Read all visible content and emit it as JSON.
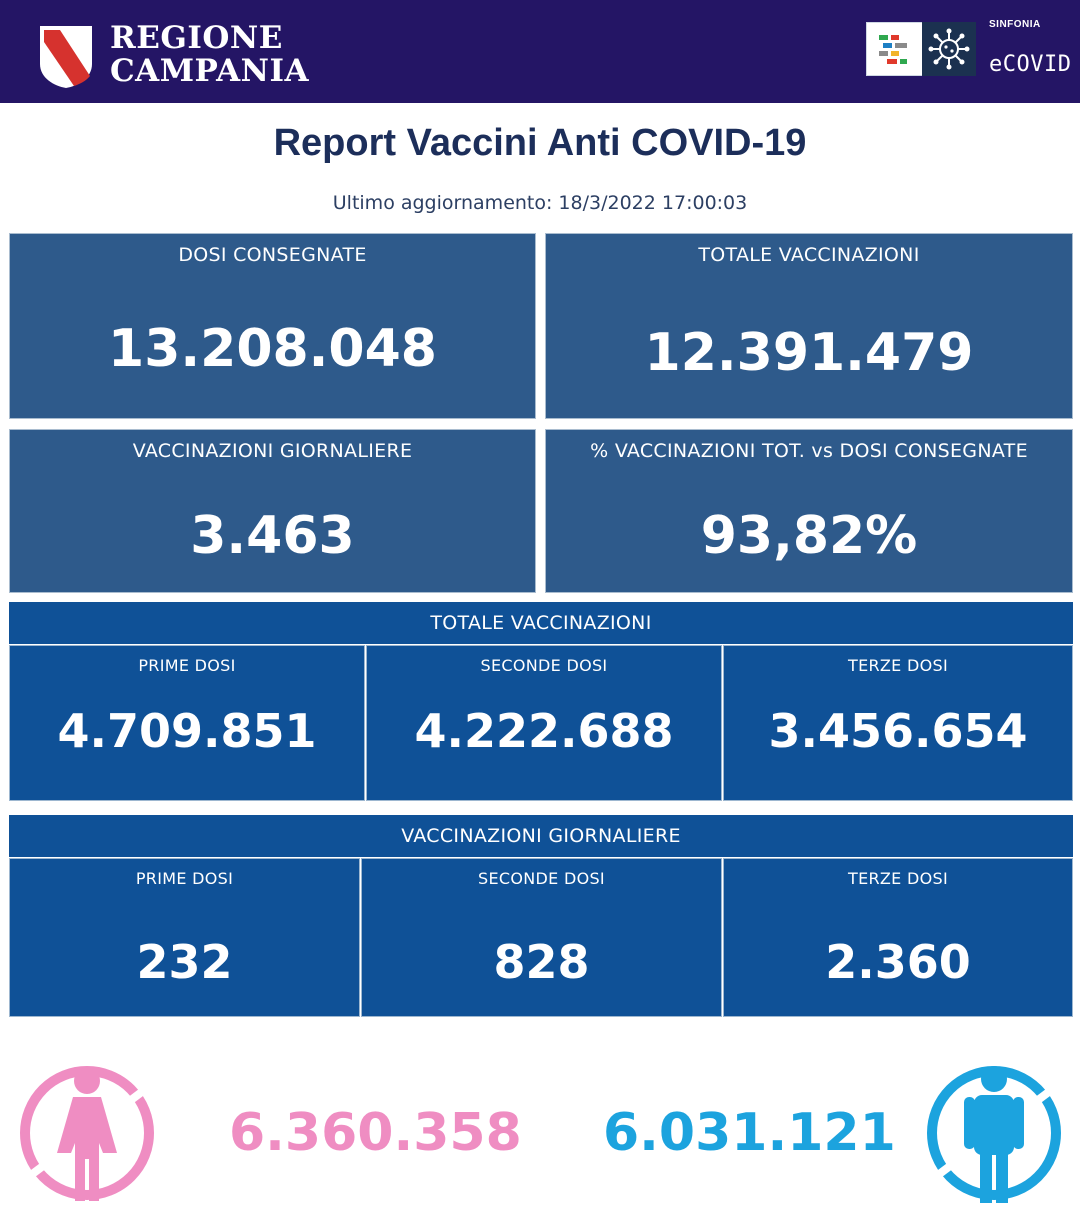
{
  "header": {
    "brand_line1": "REGIONE",
    "brand_line2": "CAMPANIA",
    "partner_small": "SINFONIA",
    "partner_name": "eCOVID",
    "icons": [
      "campania-crest-icon",
      "sinfonia-logo-icon",
      "virus-icon"
    ]
  },
  "title": "Report Vaccini Anti COVID-19",
  "updated": "Ultimo aggiornamento: 18/3/2022  17:00:03",
  "summary": {
    "dosi_consegnate": {
      "label": "DOSI  CONSEGNATE",
      "value": "13.208.048"
    },
    "totale_vaccinazioni": {
      "label": "TOTALE VACCINAZIONI",
      "value": "12.391.479"
    },
    "vaccinazioni_giornaliere": {
      "label": "VACCINAZIONI GIORNALIERE",
      "value": "3.463"
    },
    "percentuale": {
      "label": "% VACCINAZIONI TOT. vs DOSI CONSEGNATE",
      "value": "93,82%"
    }
  },
  "totale": {
    "heading": "TOTALE VACCINAZIONI",
    "cells": [
      {
        "label": "PRIME DOSI",
        "value": "4.709.851"
      },
      {
        "label": "SECONDE DOSI",
        "value": "4.222.688"
      },
      {
        "label": "TERZE DOSI",
        "value": "3.456.654"
      }
    ]
  },
  "giornaliere": {
    "heading": "VACCINAZIONI GIORNALIERE",
    "cells": [
      {
        "label": "PRIME DOSI",
        "value": "232"
      },
      {
        "label": "SECONDE DOSI",
        "value": "828"
      },
      {
        "label": "TERZE DOSI",
        "value": "2.360"
      }
    ]
  },
  "gender": {
    "female_value": "6.360.358",
    "male_value": "6.031.121",
    "female_color": "#ef8dc2",
    "male_color": "#1ca3de",
    "icons": [
      "female-person-icon",
      "male-person-icon"
    ]
  },
  "colors": {
    "header_bg": "#241565",
    "card_bg": "#2e5a8b",
    "panel_bg": "#0f5197",
    "title": "#1c2e5a"
  }
}
